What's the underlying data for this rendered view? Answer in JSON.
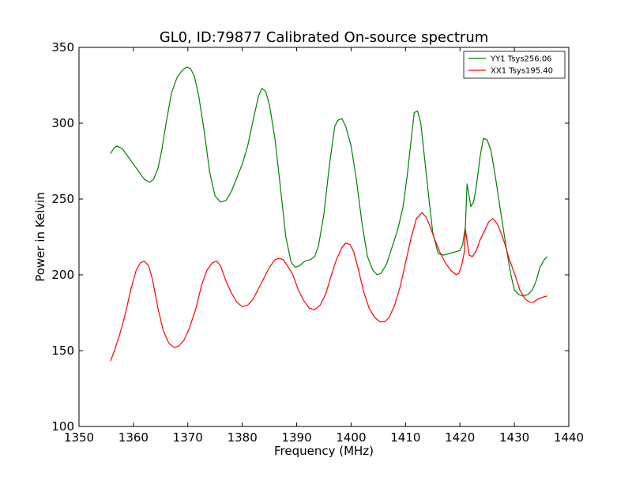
{
  "chart_data": {
    "type": "line",
    "title": "GL0, ID:79877 Calibrated On-source spectrum",
    "xlabel": "Frequency (MHz)",
    "ylabel": "Power in Kelvin",
    "xlim": [
      1350,
      1440
    ],
    "ylim": [
      100,
      350
    ],
    "xticks": [
      1350,
      1360,
      1370,
      1380,
      1390,
      1400,
      1410,
      1420,
      1430,
      1440
    ],
    "yticks": [
      100,
      150,
      200,
      250,
      300,
      350
    ],
    "grid": false,
    "legend_position": "top-right",
    "series": [
      {
        "name": "YY1 Tsys256.06",
        "color": "#008000",
        "points": [
          [
            1355.8,
            280
          ],
          [
            1356.5,
            284
          ],
          [
            1357.0,
            285
          ],
          [
            1358.0,
            283
          ],
          [
            1359.0,
            278
          ],
          [
            1360.0,
            273
          ],
          [
            1361.0,
            268
          ],
          [
            1362.0,
            263
          ],
          [
            1363.0,
            261
          ],
          [
            1363.7,
            263
          ],
          [
            1364.5,
            270
          ],
          [
            1365.2,
            282
          ],
          [
            1366.0,
            300
          ],
          [
            1367.0,
            320
          ],
          [
            1368.0,
            330
          ],
          [
            1369.0,
            335
          ],
          [
            1369.8,
            337
          ],
          [
            1370.5,
            336
          ],
          [
            1371.2,
            331
          ],
          [
            1372.0,
            318
          ],
          [
            1373.0,
            295
          ],
          [
            1374.0,
            268
          ],
          [
            1375.0,
            252
          ],
          [
            1376.0,
            248
          ],
          [
            1377.0,
            249
          ],
          [
            1378.0,
            255
          ],
          [
            1379.0,
            264
          ],
          [
            1380.0,
            273
          ],
          [
            1381.0,
            285
          ],
          [
            1382.0,
            302
          ],
          [
            1383.0,
            318
          ],
          [
            1383.6,
            323
          ],
          [
            1384.3,
            321
          ],
          [
            1385.0,
            312
          ],
          [
            1386.0,
            290
          ],
          [
            1387.0,
            258
          ],
          [
            1388.0,
            225
          ],
          [
            1389.0,
            208
          ],
          [
            1389.8,
            205
          ],
          [
            1390.5,
            206
          ],
          [
            1391.5,
            209
          ],
          [
            1392.5,
            210
          ],
          [
            1393.3,
            212
          ],
          [
            1394.0,
            219
          ],
          [
            1395.0,
            240
          ],
          [
            1396.0,
            272
          ],
          [
            1397.0,
            298
          ],
          [
            1397.6,
            302
          ],
          [
            1398.3,
            303
          ],
          [
            1399.0,
            298
          ],
          [
            1400.0,
            285
          ],
          [
            1401.0,
            262
          ],
          [
            1402.0,
            234
          ],
          [
            1403.0,
            212
          ],
          [
            1404.0,
            203
          ],
          [
            1404.8,
            200
          ],
          [
            1405.5,
            201
          ],
          [
            1406.5,
            207
          ],
          [
            1407.5,
            218
          ],
          [
            1408.5,
            229
          ],
          [
            1409.5,
            244
          ],
          [
            1410.3,
            265
          ],
          [
            1411.0,
            288
          ],
          [
            1411.6,
            307
          ],
          [
            1412.2,
            308
          ],
          [
            1412.8,
            300
          ],
          [
            1413.5,
            277
          ],
          [
            1414.3,
            250
          ],
          [
            1415.0,
            228
          ],
          [
            1416.0,
            214
          ],
          [
            1417.0,
            213
          ],
          [
            1418.0,
            214
          ],
          [
            1419.0,
            215
          ],
          [
            1420.0,
            216
          ],
          [
            1420.5,
            220
          ],
          [
            1421.0,
            232
          ],
          [
            1421.3,
            260
          ],
          [
            1421.6,
            254
          ],
          [
            1422.0,
            245
          ],
          [
            1422.5,
            248
          ],
          [
            1423.0,
            258
          ],
          [
            1423.7,
            278
          ],
          [
            1424.3,
            290
          ],
          [
            1425.0,
            289
          ],
          [
            1425.7,
            282
          ],
          [
            1426.5,
            265
          ],
          [
            1427.5,
            241
          ],
          [
            1428.5,
            218
          ],
          [
            1429.3,
            201
          ],
          [
            1430.0,
            190
          ],
          [
            1430.8,
            187
          ],
          [
            1431.5,
            186
          ],
          [
            1432.5,
            187
          ],
          [
            1433.3,
            190
          ],
          [
            1434.0,
            196
          ],
          [
            1434.7,
            205
          ],
          [
            1435.5,
            210
          ],
          [
            1436.0,
            212
          ]
        ]
      },
      {
        "name": "XX1 Tsys195.40",
        "color": "#ff0000",
        "points": [
          [
            1355.8,
            143
          ],
          [
            1356.5,
            150
          ],
          [
            1357.5,
            161
          ],
          [
            1358.5,
            174
          ],
          [
            1359.5,
            190
          ],
          [
            1360.5,
            203
          ],
          [
            1361.3,
            208
          ],
          [
            1362.0,
            209
          ],
          [
            1362.8,
            206
          ],
          [
            1363.5,
            197
          ],
          [
            1364.5,
            178
          ],
          [
            1365.5,
            163
          ],
          [
            1366.5,
            155
          ],
          [
            1367.5,
            152
          ],
          [
            1368.3,
            153
          ],
          [
            1369.3,
            157
          ],
          [
            1370.3,
            165
          ],
          [
            1371.5,
            178
          ],
          [
            1372.5,
            193
          ],
          [
            1373.5,
            203
          ],
          [
            1374.5,
            208
          ],
          [
            1375.3,
            209
          ],
          [
            1376.0,
            206
          ],
          [
            1377.0,
            196
          ],
          [
            1378.0,
            188
          ],
          [
            1379.0,
            182
          ],
          [
            1380.0,
            179
          ],
          [
            1381.0,
            180
          ],
          [
            1382.0,
            184
          ],
          [
            1383.0,
            191
          ],
          [
            1384.0,
            198
          ],
          [
            1385.0,
            205
          ],
          [
            1386.0,
            210
          ],
          [
            1386.8,
            211
          ],
          [
            1387.5,
            210
          ],
          [
            1388.3,
            206
          ],
          [
            1389.3,
            200
          ],
          [
            1390.3,
            190
          ],
          [
            1391.3,
            183
          ],
          [
            1392.3,
            178
          ],
          [
            1393.3,
            177
          ],
          [
            1394.3,
            180
          ],
          [
            1395.3,
            187
          ],
          [
            1396.3,
            199
          ],
          [
            1397.3,
            210
          ],
          [
            1398.3,
            218
          ],
          [
            1399.0,
            221
          ],
          [
            1399.8,
            220
          ],
          [
            1400.5,
            215
          ],
          [
            1401.3,
            204
          ],
          [
            1402.3,
            189
          ],
          [
            1403.3,
            178
          ],
          [
            1404.3,
            172
          ],
          [
            1405.3,
            169
          ],
          [
            1406.2,
            169
          ],
          [
            1407.0,
            172
          ],
          [
            1408.0,
            180
          ],
          [
            1409.0,
            192
          ],
          [
            1410.0,
            208
          ],
          [
            1411.0,
            224
          ],
          [
            1412.0,
            237
          ],
          [
            1413.0,
            241
          ],
          [
            1413.8,
            238
          ],
          [
            1414.5,
            232
          ],
          [
            1415.3,
            224
          ],
          [
            1416.3,
            215
          ],
          [
            1417.3,
            208
          ],
          [
            1418.3,
            203
          ],
          [
            1419.3,
            200
          ],
          [
            1419.8,
            201
          ],
          [
            1420.3,
            206
          ],
          [
            1420.8,
            215
          ],
          [
            1421.0,
            230
          ],
          [
            1421.4,
            220
          ],
          [
            1421.7,
            213
          ],
          [
            1422.3,
            212
          ],
          [
            1423.0,
            216
          ],
          [
            1423.7,
            223
          ],
          [
            1424.5,
            229
          ],
          [
            1425.3,
            235
          ],
          [
            1426.0,
            237
          ],
          [
            1426.8,
            234
          ],
          [
            1427.5,
            228
          ],
          [
            1428.3,
            220
          ],
          [
            1429.0,
            211
          ],
          [
            1430.0,
            201
          ],
          [
            1431.0,
            190
          ],
          [
            1432.0,
            184
          ],
          [
            1432.8,
            182
          ],
          [
            1433.5,
            182
          ],
          [
            1434.3,
            184
          ],
          [
            1435.0,
            185
          ],
          [
            1436.0,
            186
          ]
        ]
      }
    ]
  }
}
